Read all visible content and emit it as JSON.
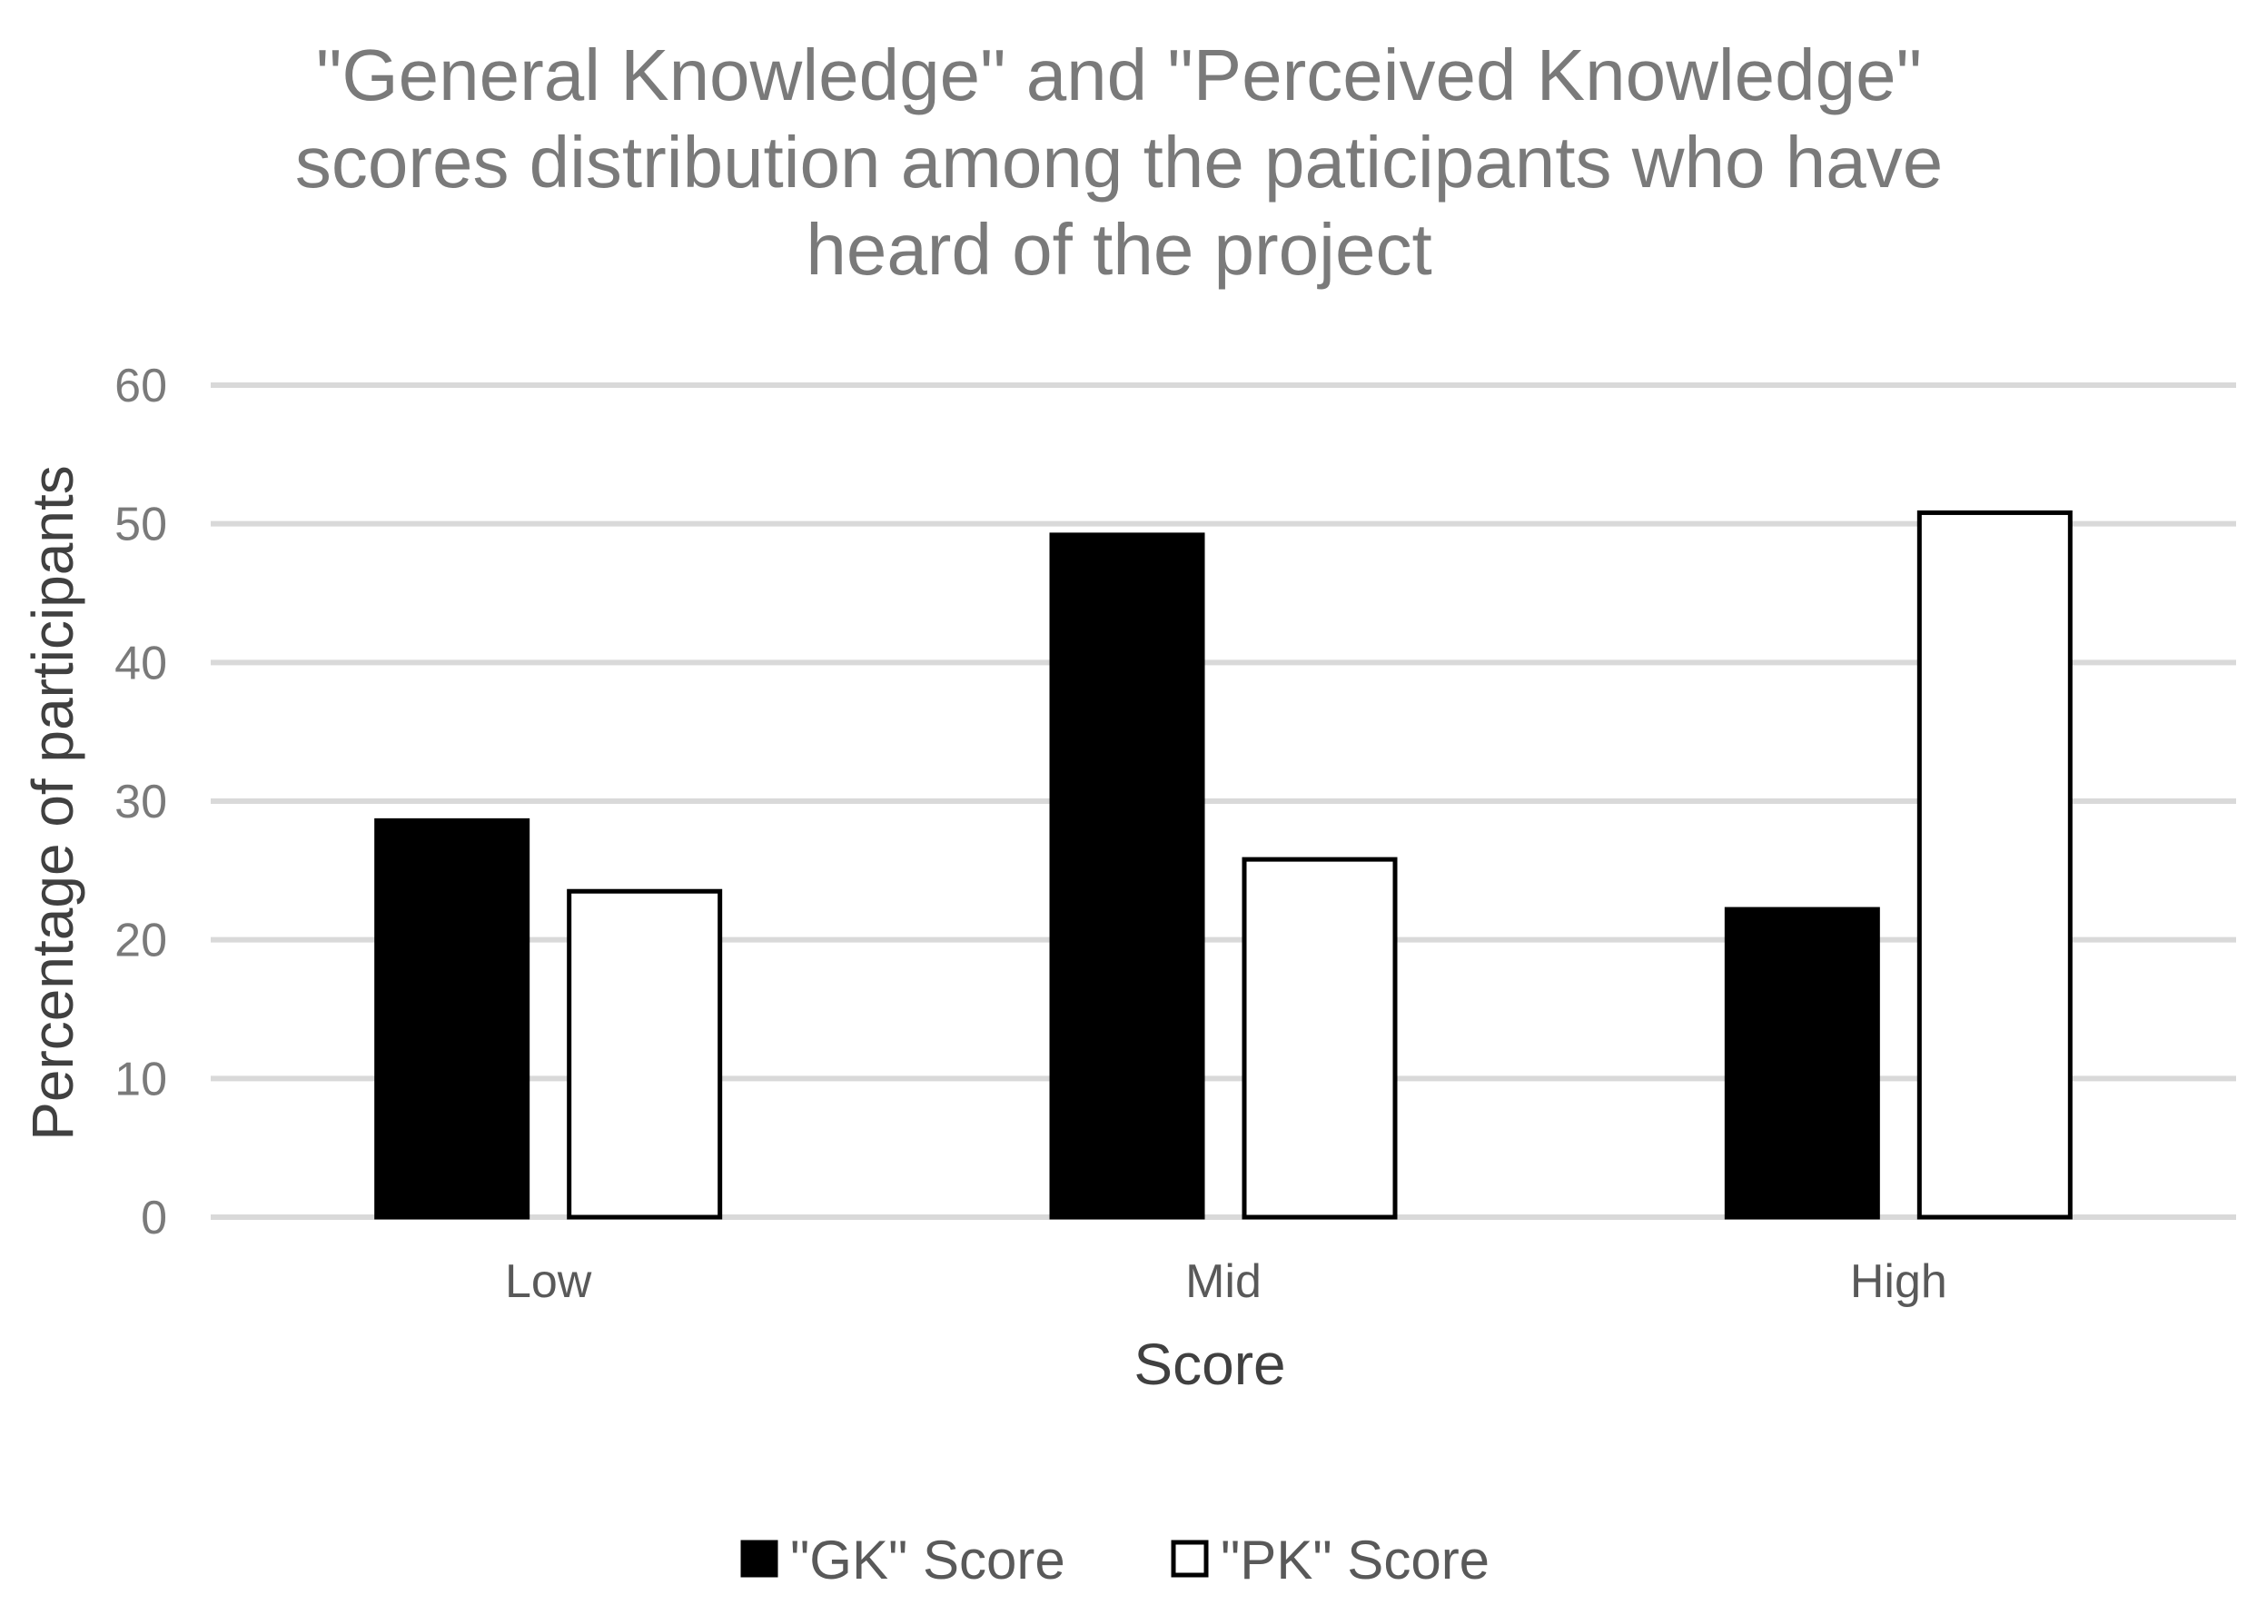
{
  "chart_data": {
    "type": "bar",
    "title": [
      "\"General Knowledge\" and \"Perceived Knowledge\"",
      "scores distribution among the paticipants who have",
      "heard of the project"
    ],
    "xlabel": "Score",
    "ylabel": "Percentage of participants",
    "categories": [
      "Low",
      "Mid",
      "High"
    ],
    "series": [
      {
        "name": "\"GK\" Score",
        "values": [
          28.6,
          49.2,
          22.2
        ],
        "fill": "#000000",
        "stroke": "#000000"
      },
      {
        "name": "\"PK\" Score",
        "values": [
          23.5,
          25.8,
          50.8
        ],
        "fill": "#ffffff",
        "stroke": "#000000"
      }
    ],
    "ylim": [
      0,
      60
    ],
    "yticks": [
      0,
      10,
      20,
      30,
      40,
      50,
      60
    ],
    "grid": true,
    "gridColor": "#d9d9d9",
    "legend": "bottom-center"
  }
}
